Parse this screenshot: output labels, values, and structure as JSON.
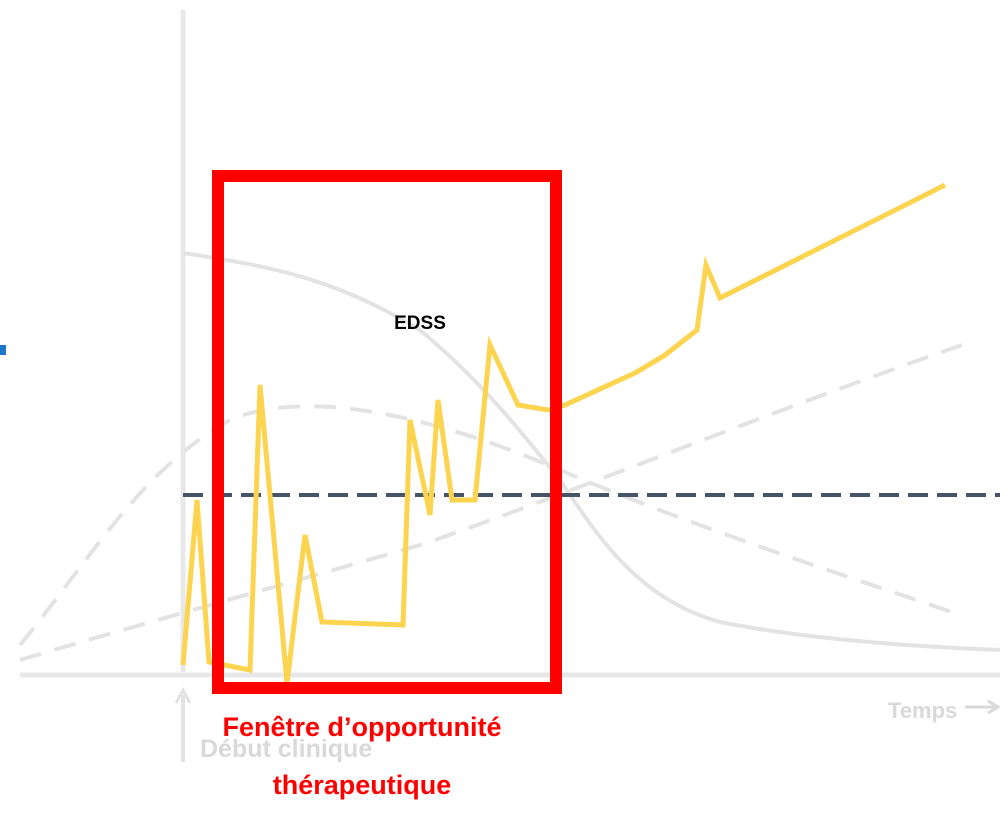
{
  "labels": {
    "curve": "EDSS",
    "x_axis": "Temps",
    "onset": "Début clinique",
    "window_line1": "Fenêtre d’opportunité",
    "window_line2": "thérapeutique"
  }
}
